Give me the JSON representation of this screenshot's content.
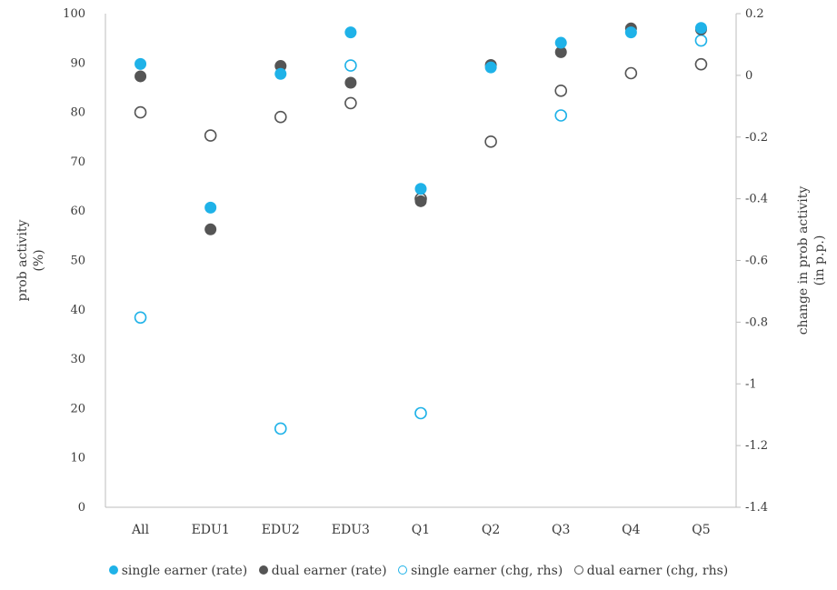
{
  "chart_data": {
    "type": "scatter",
    "categories": [
      "All",
      "EDU1",
      "EDU2",
      "EDU3",
      "Q1",
      "Q2",
      "Q3",
      "Q4",
      "Q5"
    ],
    "ylabel": "prob activity\n(%)",
    "y2label": "change in prob activity\n(in p.p.)",
    "ylim": [
      0,
      100
    ],
    "y2lim": [
      -1.4,
      0.2
    ],
    "yticks": [
      "0",
      "10",
      "20",
      "30",
      "40",
      "50",
      "60",
      "70",
      "80",
      "90",
      "100"
    ],
    "y2ticks": [
      "0.2",
      "0",
      "-0.2",
      "-0.4",
      "-0.6",
      "-0.8",
      "-1",
      "-1.2",
      "-1.4"
    ],
    "grid": false,
    "legend_position": "bottom",
    "series": [
      {
        "name": "single earner (rate)",
        "axis": "left",
        "style": "filled",
        "color": "#1fb2e8",
        "values": [
          89.8,
          60.7,
          87.8,
          96.2,
          64.5,
          89.1,
          94.1,
          96.2,
          97.1
        ]
      },
      {
        "name": "dual earner (rate)",
        "axis": "left",
        "style": "filled",
        "color": "#555555",
        "values": [
          87.3,
          56.3,
          89.4,
          86.0,
          62.0,
          89.6,
          92.2,
          97.0,
          96.8
        ]
      },
      {
        "name": "single earner (chg, rhs)",
        "axis": "right",
        "style": "hollow",
        "color": "#1fb2e8",
        "values": [
          -0.785,
          null,
          -1.145,
          0.032,
          -1.095,
          null,
          -0.13,
          null,
          0.113
        ]
      },
      {
        "name": "dual earner (chg, rhs)",
        "axis": "right",
        "style": "hollow",
        "color": "#555555",
        "values": [
          -0.12,
          -0.195,
          -0.135,
          -0.09,
          -0.4,
          -0.215,
          -0.05,
          0.007,
          0.036
        ]
      }
    ]
  }
}
